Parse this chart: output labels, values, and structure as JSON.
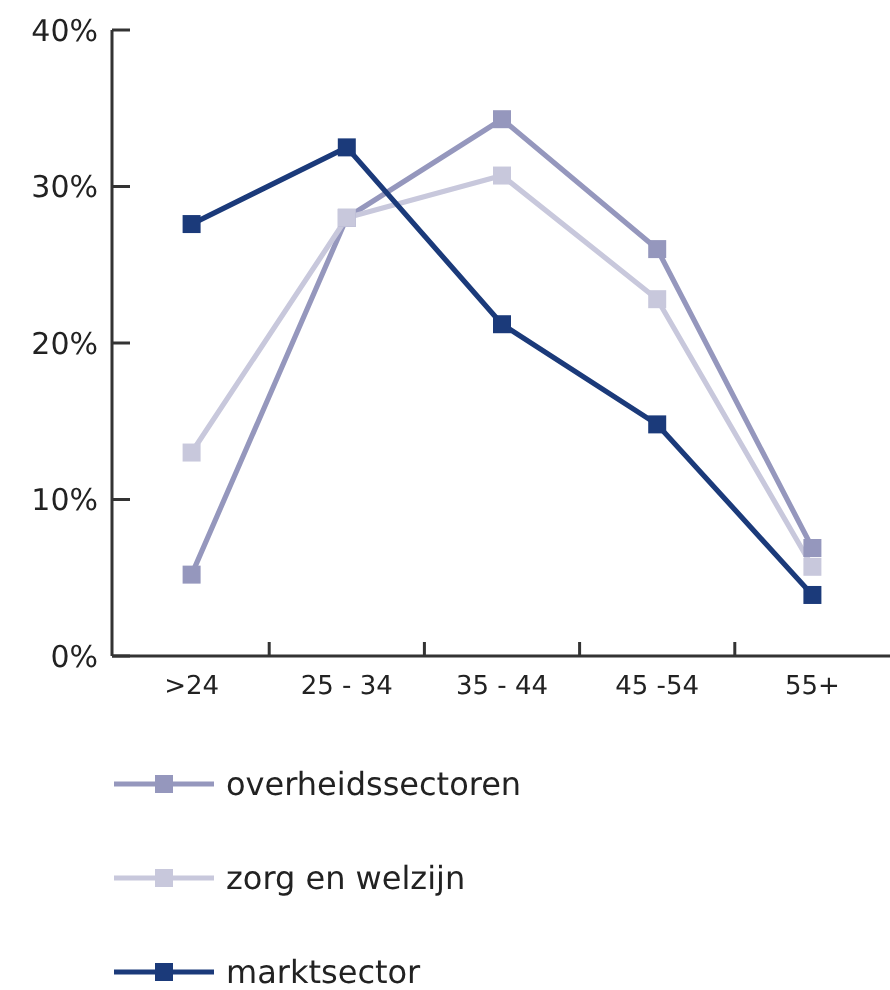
{
  "chart_data": {
    "type": "line",
    "categories": [
      ">24",
      "25 - 34",
      "35 - 44",
      "45 -54",
      "55+"
    ],
    "series": [
      {
        "name": "overheidssectoren",
        "color": "#9597bd",
        "values": [
          5.2,
          28.0,
          34.3,
          26.0,
          6.9
        ]
      },
      {
        "name": "zorg en welzijn",
        "color": "#c8c8dc",
        "values": [
          13.0,
          28.0,
          30.7,
          22.8,
          5.7
        ]
      },
      {
        "name": "marktsector",
        "color": "#1b3a7a",
        "values": [
          27.6,
          32.5,
          21.2,
          14.8,
          3.9
        ]
      }
    ],
    "ylim": [
      0,
      40
    ],
    "yticks": [
      {
        "value": 0,
        "label": "0%"
      },
      {
        "value": 10,
        "label": "10%"
      },
      {
        "value": 20,
        "label": "20%"
      },
      {
        "value": 30,
        "label": "30%"
      },
      {
        "value": 40,
        "label": "40%"
      }
    ],
    "marker": "square",
    "line_style": "solid",
    "legend": "bottom"
  }
}
